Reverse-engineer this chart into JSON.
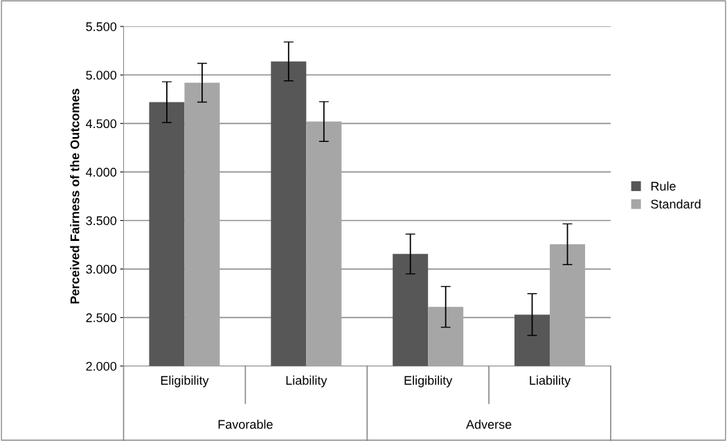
{
  "chart_data": {
    "type": "bar",
    "ylabel": "Perceived Fairness of the Outcomes",
    "categories": [
      "Eligibility",
      "Liability",
      "Eligibility",
      "Liability"
    ],
    "series": [
      {
        "name": "Rule",
        "color": "#575757",
        "values": [
          4.72,
          5.14,
          3.155,
          2.53
        ],
        "errors": [
          0.21,
          0.2,
          0.205,
          0.215
        ]
      },
      {
        "name": "Standard",
        "color": "#a6a6a6",
        "values": [
          4.92,
          4.52,
          2.61,
          3.255
        ],
        "errors": [
          0.2,
          0.205,
          0.21,
          0.21
        ]
      }
    ],
    "annotations": [
      "Favorable",
      "Adverse"
    ],
    "ylim": [
      2,
      5.5
    ],
    "yticks": [
      {
        "value": 2,
        "label": "2.000"
      },
      {
        "value": 2.5,
        "label": "2.500"
      },
      {
        "value": 3,
        "label": "3.000"
      },
      {
        "value": 3.5,
        "label": "3.500"
      },
      {
        "value": 4,
        "label": "4.000"
      },
      {
        "value": 4.5,
        "label": "4.500"
      },
      {
        "value": 5,
        "label": "5.000"
      },
      {
        "value": 5.5,
        "label": "5.500"
      }
    ],
    "grid": "y",
    "legend": "right"
  }
}
